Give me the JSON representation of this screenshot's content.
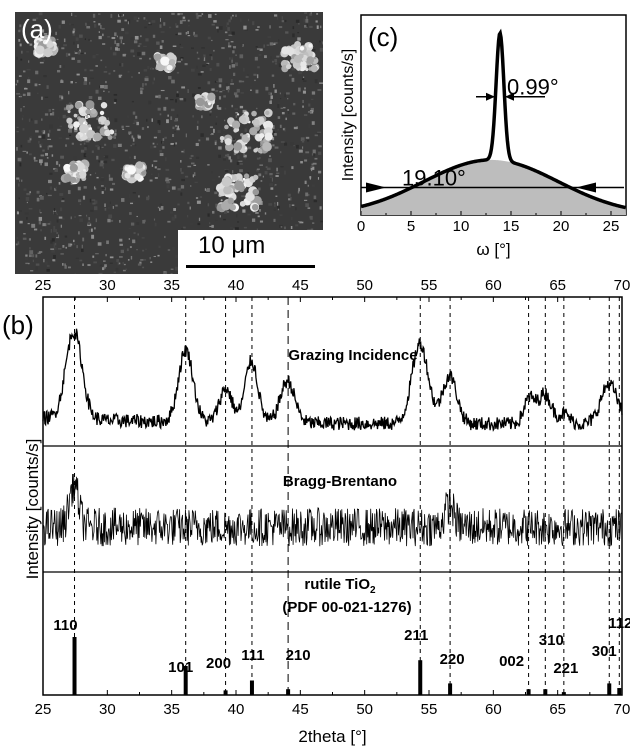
{
  "panel_a": {
    "label": "(a)",
    "scale_bar": "10 μm"
  },
  "chart_data": [
    {
      "panel_label": "(c)",
      "type": "line",
      "xlabel": "ω [°]",
      "ylabel": "Intensity [counts/s]",
      "xlim": [
        0,
        26.5
      ],
      "xticks": [
        0,
        5,
        10,
        15,
        20,
        25
      ],
      "annotations": {
        "narrow_fwhm": "0.99°",
        "broad_fwhm": "19.10°"
      },
      "narrow_peak": {
        "center": 13.9,
        "fwhm": 0.99
      },
      "broad_peak": {
        "center": 13.0,
        "fwhm": 19.1
      }
    },
    {
      "panel_label": "(b)",
      "type": "line",
      "xlabel": "2theta [°]",
      "ylabel": "Intensity [counts/s]",
      "xlim": [
        25,
        70
      ],
      "xticks": [
        25,
        30,
        35,
        40,
        45,
        50,
        55,
        60,
        65,
        70
      ],
      "series": [
        {
          "name": "Grazing Incidence",
          "peaks": [
            {
              "x": 27.4,
              "height": 0.88,
              "width": 0.9
            },
            {
              "x": 36.1,
              "height": 0.72,
              "width": 0.8
            },
            {
              "x": 39.2,
              "height": 0.34,
              "width": 0.7
            },
            {
              "x": 41.2,
              "height": 0.62,
              "width": 0.7
            },
            {
              "x": 44.0,
              "height": 0.42,
              "width": 0.8
            },
            {
              "x": 54.3,
              "height": 0.8,
              "width": 0.9
            },
            {
              "x": 56.6,
              "height": 0.48,
              "width": 0.8
            },
            {
              "x": 62.8,
              "height": 0.25,
              "width": 0.6
            },
            {
              "x": 64.0,
              "height": 0.3,
              "width": 0.7
            },
            {
              "x": 65.5,
              "height": 0.1,
              "width": 0.6
            },
            {
              "x": 69.0,
              "height": 0.4,
              "width": 0.9
            }
          ]
        },
        {
          "name": "Bragg-Brentano",
          "peaks": [
            {
              "x": 27.4,
              "height": 0.62,
              "width": 0.5
            },
            {
              "x": 56.6,
              "height": 0.32,
              "width": 0.5
            }
          ]
        }
      ],
      "reference": {
        "title": "rutile TiO",
        "title_sub": "2",
        "pdf": "(PDF 00-021-1276)",
        "lines": [
          {
            "x": 27.45,
            "hkl": "110",
            "rel": 1.0
          },
          {
            "x": 36.09,
            "hkl": "101",
            "rel": 0.5
          },
          {
            "x": 39.19,
            "hkl": "200",
            "rel": 0.08
          },
          {
            "x": 41.24,
            "hkl": "111",
            "rel": 0.25
          },
          {
            "x": 44.05,
            "hkl": "210",
            "rel": 0.1
          },
          {
            "x": 54.32,
            "hkl": "211",
            "rel": 0.6
          },
          {
            "x": 56.64,
            "hkl": "220",
            "rel": 0.2
          },
          {
            "x": 62.74,
            "hkl": "002",
            "rel": 0.1
          },
          {
            "x": 64.04,
            "hkl": "310",
            "rel": 0.1
          },
          {
            "x": 65.48,
            "hkl": "221",
            "rel": 0.05
          },
          {
            "x": 69.01,
            "hkl": "301",
            "rel": 0.2
          },
          {
            "x": 69.79,
            "hkl": "112",
            "rel": 0.12
          }
        ]
      }
    }
  ]
}
